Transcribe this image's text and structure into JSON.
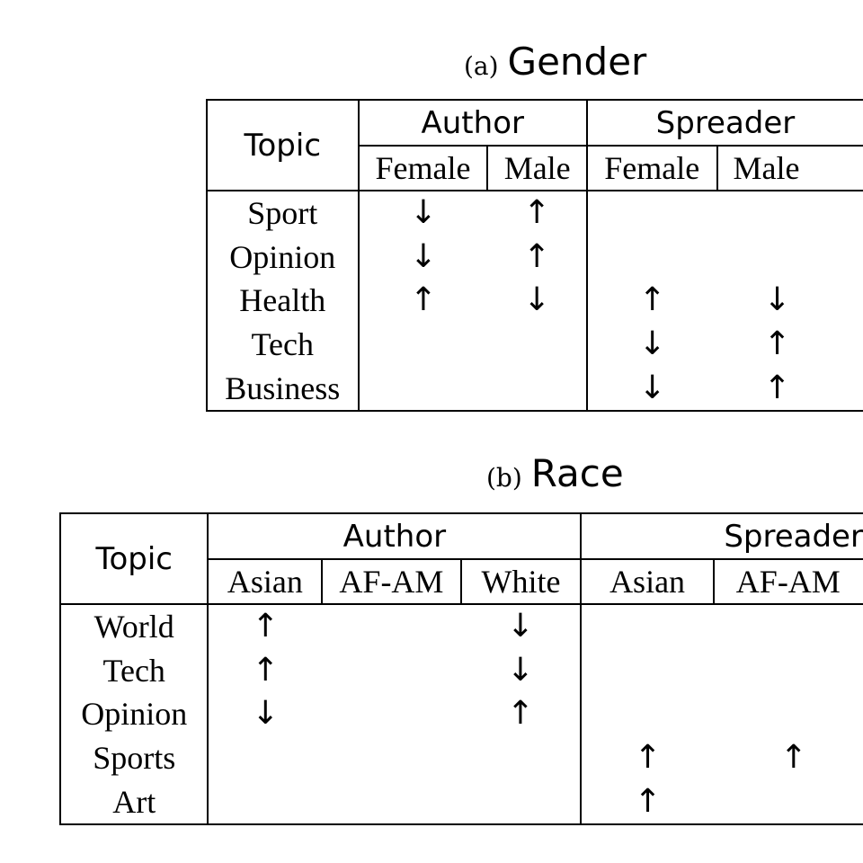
{
  "gender": {
    "label": "(a)",
    "title": "Gender",
    "topic_header": "Topic",
    "groups": [
      "Author",
      "Spreader"
    ],
    "subheaders": [
      "Female",
      "Male",
      "Female",
      "Male"
    ],
    "rows": [
      {
        "topic": "Sport",
        "cells": [
          "↓",
          "↑",
          "",
          ""
        ]
      },
      {
        "topic": "Opinion",
        "cells": [
          "↓",
          "↑",
          "",
          ""
        ]
      },
      {
        "topic": "Health",
        "cells": [
          "↑",
          "↓",
          "↑",
          "↓"
        ]
      },
      {
        "topic": "Tech",
        "cells": [
          "",
          "",
          "↓",
          "↑"
        ]
      },
      {
        "topic": "Business",
        "cells": [
          "",
          "",
          "↓",
          "↑"
        ]
      }
    ]
  },
  "race": {
    "label": "(b)",
    "title": "Race",
    "topic_header": "Topic",
    "groups": [
      "Author",
      "Spreader"
    ],
    "subheaders": [
      "Asian",
      "AF-AM",
      "White",
      "Asian",
      "AF-AM"
    ],
    "rows": [
      {
        "topic": "World",
        "cells": [
          "↑",
          "",
          "↓",
          "",
          ""
        ]
      },
      {
        "topic": "Tech",
        "cells": [
          "↑",
          "",
          "↓",
          "",
          ""
        ]
      },
      {
        "topic": "Opinion",
        "cells": [
          "↓",
          "",
          "↑",
          "",
          ""
        ]
      },
      {
        "topic": "Sports",
        "cells": [
          "",
          "",
          "",
          "↑",
          "↑"
        ]
      },
      {
        "topic": "Art",
        "cells": [
          "",
          "",
          "",
          "↑",
          ""
        ]
      }
    ]
  }
}
